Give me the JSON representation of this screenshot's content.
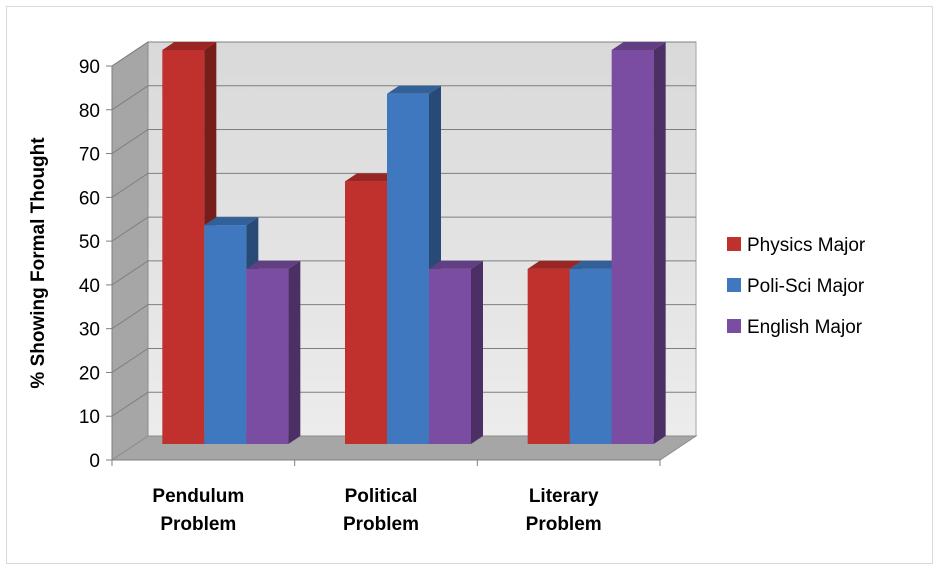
{
  "chart_data": {
    "type": "bar",
    "categories": [
      "Pendulum Problem",
      "Political Problem",
      "Literary Problem"
    ],
    "category_lines": [
      [
        "Pendulum",
        "Problem"
      ],
      [
        "Political",
        "Problem"
      ],
      [
        "Literary",
        "Problem"
      ]
    ],
    "series": [
      {
        "name": "Physics Major",
        "values": [
          90,
          60,
          40
        ],
        "color": "#c0302c"
      },
      {
        "name": "Poli-Sci Major",
        "values": [
          50,
          80,
          40
        ],
        "color": "#3f78bf"
      },
      {
        "name": "English Major",
        "values": [
          40,
          40,
          90
        ],
        "color": "#7a4da3"
      }
    ],
    "ylabel": "% Showing Formal Thought",
    "xlabel": "",
    "ylim": [
      0,
      90
    ],
    "yticks": [
      0,
      10,
      20,
      30,
      40,
      50,
      60,
      70,
      80,
      90
    ],
    "grid": true,
    "style": "3d-clustered-column",
    "legend_position": "right"
  }
}
